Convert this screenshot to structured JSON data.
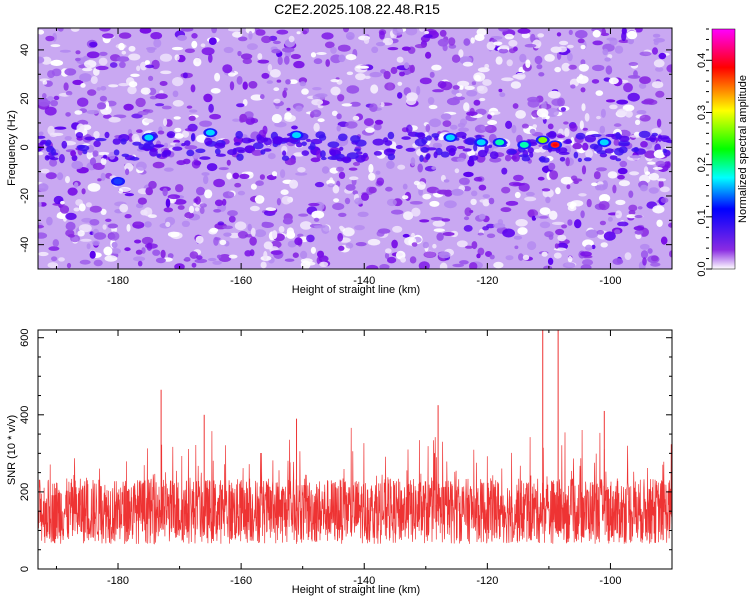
{
  "title": "C2E2.2025.108.22.48.R15",
  "chart_data": [
    {
      "type": "heatmap",
      "xlabel": "Height of straight line (km)",
      "ylabel": "Frequency (Hz)",
      "xlim": [
        -193,
        -90
      ],
      "ylim": [
        -50,
        49
      ],
      "x_ticks": [
        -180,
        -160,
        -140,
        -120,
        -100
      ],
      "y_ticks": [
        -40,
        -20,
        0,
        20,
        40
      ],
      "colorbar": {
        "label": "Normalized spectral amplitude",
        "range": [
          0,
          0.46
        ],
        "ticks": [
          0.0,
          0.1,
          0.2,
          0.3,
          0.4
        ],
        "colormap": [
          "#ffffff",
          "#8a2be2",
          "#0000ff",
          "#00ffff",
          "#00ff00",
          "#ffff00",
          "#ff0000",
          "#ff00ff"
        ]
      },
      "background_color": "#c9a8f2",
      "signal_band_hz": 0,
      "bright_clusters": [
        {
          "x": -175,
          "y": 4,
          "value": 0.13
        },
        {
          "x": -180,
          "y": -14,
          "value": 0.11
        },
        {
          "x": -165,
          "y": 6,
          "value": 0.12
        },
        {
          "x": -151,
          "y": 5,
          "value": 0.12
        },
        {
          "x": -126,
          "y": 4,
          "value": 0.12
        },
        {
          "x": -121,
          "y": 2,
          "value": 0.17
        },
        {
          "x": -118,
          "y": 2,
          "value": 0.18
        },
        {
          "x": -114,
          "y": 1,
          "value": 0.19
        },
        {
          "x": -111,
          "y": 3,
          "value": 0.3
        },
        {
          "x": -109,
          "y": 1,
          "value": 0.42
        },
        {
          "x": -101,
          "y": 2,
          "value": 0.14
        }
      ]
    },
    {
      "type": "line",
      "xlabel": "Height of straight line (km)",
      "ylabel": "SNR (10 * v/v)",
      "xlim": [
        -193,
        -90
      ],
      "ylim": [
        0,
        620
      ],
      "x_ticks": [
        -180,
        -160,
        -140,
        -120,
        -100
      ],
      "y_ticks": [
        0,
        200,
        400,
        600
      ],
      "color": "#ee3333",
      "baseline_mean": 150,
      "peaks": [
        {
          "x": -173,
          "y": 465
        },
        {
          "x": -166,
          "y": 400
        },
        {
          "x": -151,
          "y": 390
        },
        {
          "x": -128,
          "y": 425
        },
        {
          "x": -111,
          "y": 620
        },
        {
          "x": -108.5,
          "y": 620
        },
        {
          "x": -101,
          "y": 410
        }
      ]
    }
  ]
}
